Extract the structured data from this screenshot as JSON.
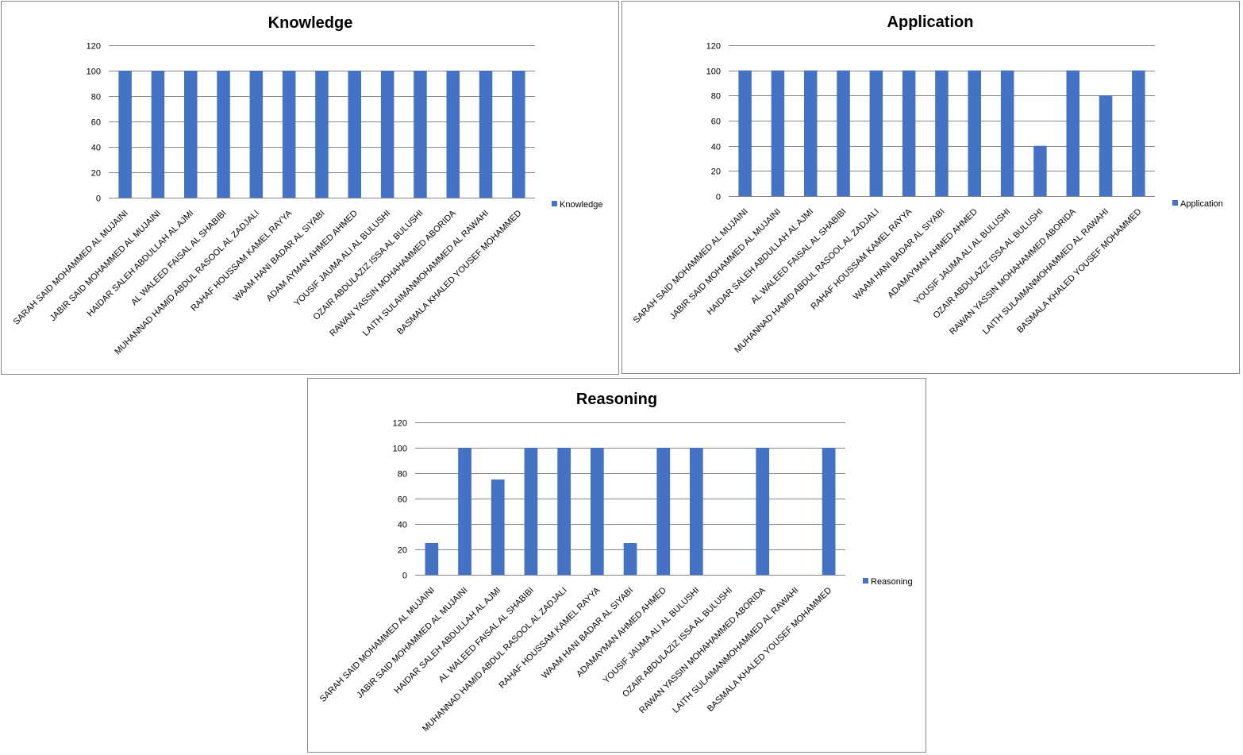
{
  "chart_data": [
    {
      "type": "bar",
      "title": "Knowledge",
      "categories": [
        "SARAH SAID MOHAMMED AL MUJAINI",
        "JABIR SAID MOHAMMED  AL MUJAINI",
        "HAIDAR SALEH ABDULLAH AL AJMI",
        "AL WALEED FAISAL AL SHABIBI",
        "MUHANNAD HAMID ABDUL RASOOL AL ZADJALI",
        "RAHAF HOUSSAM KAMEL RAYYA",
        "WAAM HANI BADAR AL SIYABI",
        "ADAM AYMAN AHMED AHMED",
        "YOUSIF JAUMA ALI AL BULUSHI",
        "OZAIR ABDULAZIZ ISSA  AL BULUSHI",
        "RAWAN YASSIN  MOHAHAMMED ABORIDA",
        "LAITH SULAIMANMOHAMMED  AL RAWAHI",
        "BASMALA KHALED YOUSEF MOHAMMED"
      ],
      "series": [
        {
          "name": "Knowledge",
          "values": [
            100,
            100,
            100,
            100,
            100,
            100,
            100,
            100,
            100,
            100,
            100,
            100,
            100
          ]
        }
      ],
      "yticks": [
        "0",
        "20",
        "40",
        "60",
        "80",
        "100",
        "120"
      ],
      "ylim": [
        0,
        120
      ],
      "grid": true,
      "legend": "right",
      "color": "#4472C4"
    },
    {
      "type": "bar",
      "title": "Application",
      "categories": [
        "SARAH SAID MOHAMMED AL MUJAINI",
        "JABIR SAID MOHAMMED  AL MUJAINI",
        "HAIDAR SALEH ABDULLAH AL AJMI",
        "AL WALEED FAISAL AL SHABIBI",
        "MUHANNAD HAMID ABDUL RASOOL AL ZADJALI",
        "RAHAF HOUSSAM KAMEL RAYYA",
        "WAAM HANI BADAR AL SIYABI",
        "ADAMAYMAN AHMED AHMED",
        "YOUSIF JAUMA ALI AL BULUSHI",
        "OZAIR ABDULAZIZ ISSA  AL BULUSHI",
        "RAWAN YASSIN  MOHAHAMMED ABORIDA",
        "LAITH SULAIMANMOHAMMED  AL RAWAHI",
        "BASMALA KHALED YOUSEF MOHAMMED"
      ],
      "series": [
        {
          "name": "Application",
          "values": [
            100,
            100,
            100,
            100,
            100,
            100,
            100,
            100,
            100,
            40,
            100,
            80,
            100
          ]
        }
      ],
      "yticks": [
        "0",
        "20",
        "40",
        "60",
        "80",
        "100",
        "120"
      ],
      "ylim": [
        0,
        120
      ],
      "grid": true,
      "legend": "right",
      "color": "#4472C4"
    },
    {
      "type": "bar",
      "title": "Reasoning",
      "categories": [
        "SARAH SAID MOHAMMED AL MUJAINI",
        "JABIR SAID MOHAMMED  AL MUJAINI",
        "HAIDAR SALEH ABDULLAH AL AJMI",
        "AL WALEED FAISAL AL SHABIBI",
        "MUHANNAD HAMID ABDUL RASOOL AL ZADJALI",
        "RAHAF HOUSSAM KAMEL RAYYA",
        "WAAM HANI BADAR AL SIYABI",
        "ADAMAYMAN AHMED AHMED",
        "YOUSIF JAUMA ALI AL BULUSHI",
        "OZAIR ABDULAZIZ ISSA  AL BULUSHI",
        "RAWAN YASSIN  MOHAHAMMED ABORIDA",
        "LAITH SULAIMANMOHAMMED  AL RAWAHI",
        "BASMALA KHALED YOUSEF MOHAMMED"
      ],
      "series": [
        {
          "name": "Reasoning",
          "values": [
            25,
            100,
            75,
            100,
            100,
            100,
            25,
            100,
            100,
            0,
            100,
            0,
            100
          ]
        }
      ],
      "yticks": [
        "0",
        "20",
        "40",
        "60",
        "80",
        "100",
        "120"
      ],
      "ylim": [
        0,
        120
      ],
      "grid": true,
      "legend": "right",
      "color": "#4472C4"
    }
  ]
}
